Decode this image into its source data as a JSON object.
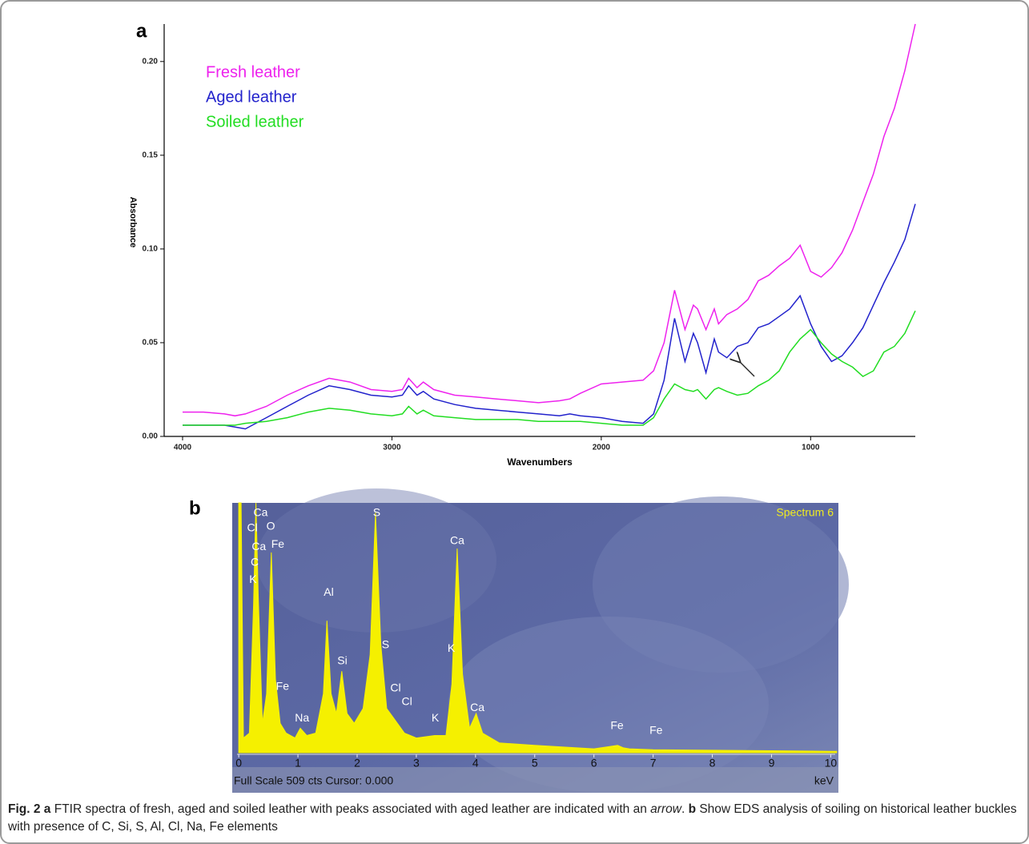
{
  "chart_data": [
    {
      "type": "line",
      "panel": "a",
      "xlabel": "Wavenumbers",
      "ylabel": "Absorbance",
      "xlim": [
        4088,
        500
      ],
      "ylim": [
        0,
        0.22
      ],
      "xticks": [
        4000,
        3000,
        2000,
        1000
      ],
      "yticks": [
        {
          "value": 0,
          "label": "0.00"
        },
        0.05,
        {
          "value": 0.1,
          "label": "0.10"
        },
        0.15,
        {
          "value": 0.2,
          "label": "0.20"
        }
      ],
      "legend": "upper left",
      "x": [
        4000,
        3900,
        3800,
        3750,
        3700,
        3600,
        3500,
        3400,
        3300,
        3200,
        3100,
        3000,
        2950,
        2920,
        2880,
        2850,
        2800,
        2700,
        2600,
        2500,
        2400,
        2300,
        2200,
        2150,
        2100,
        2000,
        1900,
        1800,
        1750,
        1700,
        1650,
        1600,
        1560,
        1540,
        1500,
        1460,
        1440,
        1400,
        1350,
        1300,
        1250,
        1200,
        1150,
        1100,
        1050,
        1000,
        950,
        900,
        850,
        800,
        750,
        700,
        650,
        600,
        550,
        500
      ],
      "series": [
        {
          "name": "Fresh leather",
          "color": "#ee22ee",
          "values": [
            0.013,
            0.013,
            0.012,
            0.011,
            0.012,
            0.016,
            0.022,
            0.027,
            0.031,
            0.029,
            0.025,
            0.024,
            0.025,
            0.031,
            0.026,
            0.029,
            0.025,
            0.022,
            0.021,
            0.02,
            0.019,
            0.018,
            0.019,
            0.02,
            0.023,
            0.028,
            0.029,
            0.03,
            0.035,
            0.05,
            0.078,
            0.057,
            0.07,
            0.068,
            0.057,
            0.068,
            0.06,
            0.065,
            0.068,
            0.073,
            0.083,
            0.086,
            0.091,
            0.095,
            0.102,
            0.088,
            0.085,
            0.09,
            0.098,
            0.11,
            0.125,
            0.14,
            0.16,
            0.175,
            0.195,
            0.22
          ]
        },
        {
          "name": "Aged leather",
          "color": "#2222cc",
          "values": [
            0.006,
            0.006,
            0.006,
            0.005,
            0.004,
            0.01,
            0.016,
            0.022,
            0.027,
            0.025,
            0.022,
            0.021,
            0.022,
            0.027,
            0.022,
            0.024,
            0.02,
            0.017,
            0.015,
            0.014,
            0.013,
            0.012,
            0.011,
            0.012,
            0.011,
            0.01,
            0.008,
            0.007,
            0.012,
            0.03,
            0.063,
            0.04,
            0.055,
            0.05,
            0.034,
            0.052,
            0.045,
            0.042,
            0.048,
            0.05,
            0.058,
            0.06,
            0.064,
            0.068,
            0.075,
            0.06,
            0.048,
            0.04,
            0.043,
            0.05,
            0.058,
            0.07,
            0.082,
            0.093,
            0.105,
            0.124
          ]
        },
        {
          "name": "Soiled leather",
          "color": "#22dd22",
          "values": [
            0.006,
            0.006,
            0.006,
            0.006,
            0.007,
            0.008,
            0.01,
            0.013,
            0.015,
            0.014,
            0.012,
            0.011,
            0.012,
            0.016,
            0.012,
            0.014,
            0.011,
            0.01,
            0.009,
            0.009,
            0.009,
            0.008,
            0.008,
            0.008,
            0.008,
            0.007,
            0.006,
            0.006,
            0.01,
            0.02,
            0.028,
            0.025,
            0.024,
            0.025,
            0.02,
            0.025,
            0.026,
            0.024,
            0.022,
            0.023,
            0.027,
            0.03,
            0.035,
            0.045,
            0.052,
            0.057,
            0.05,
            0.044,
            0.04,
            0.037,
            0.032,
            0.035,
            0.045,
            0.048,
            0.055,
            0.067
          ]
        }
      ]
    },
    {
      "type": "area",
      "panel": "b",
      "title": "Spectrum 6",
      "xlabel": "keV",
      "footer": "Full Scale 509 cts Cursor: 0.000",
      "color": "#f5f000",
      "xlim": [
        -0.11,
        10.13
      ],
      "ylim": [
        0,
        509
      ],
      "xticks": [
        0,
        1,
        2,
        3,
        4,
        5,
        6,
        7,
        8,
        9,
        10
      ],
      "x": [
        0,
        0.04,
        0.08,
        0.18,
        0.25,
        0.29,
        0.33,
        0.4,
        0.47,
        0.55,
        0.62,
        0.7,
        0.8,
        0.95,
        1.04,
        1.15,
        1.3,
        1.43,
        1.49,
        1.56,
        1.65,
        1.74,
        1.83,
        1.95,
        2.1,
        2.22,
        2.31,
        2.4,
        2.5,
        2.62,
        2.8,
        3,
        3.31,
        3.5,
        3.6,
        3.69,
        3.78,
        3.9,
        4.01,
        4.12,
        4.4,
        5,
        6,
        6.4,
        6.5,
        6.6,
        7,
        8,
        9,
        10,
        10.1
      ],
      "values": [
        509,
        509,
        30,
        40,
        300,
        509,
        320,
        60,
        120,
        408,
        150,
        60,
        40,
        30,
        50,
        35,
        40,
        120,
        269,
        120,
        80,
        166,
        80,
        60,
        90,
        200,
        489,
        220,
        90,
        70,
        40,
        30,
        35,
        35,
        140,
        416,
        160,
        50,
        80,
        40,
        20,
        15,
        8,
        15,
        10,
        8,
        6,
        5,
        4,
        3,
        3
      ],
      "peak_labels": [
        {
          "text": "Cl",
          "x": 0.23,
          "y": 457
        },
        {
          "text": "Ca",
          "x": 0.37,
          "y": 488
        },
        {
          "text": "O",
          "x": 0.54,
          "y": 460
        },
        {
          "text": "Ca",
          "x": 0.34,
          "y": 419
        },
        {
          "text": "Fe",
          "x": 0.66,
          "y": 424
        },
        {
          "text": "C",
          "x": 0.27,
          "y": 387
        },
        {
          "text": "K",
          "x": 0.24,
          "y": 352
        },
        {
          "text": "Al",
          "x": 1.52,
          "y": 326
        },
        {
          "text": "Si",
          "x": 1.75,
          "y": 186
        },
        {
          "text": "Fe",
          "x": 0.74,
          "y": 134
        },
        {
          "text": "Na",
          "x": 1.07,
          "y": 70
        },
        {
          "text": "S",
          "x": 2.33,
          "y": 488
        },
        {
          "text": "S",
          "x": 2.48,
          "y": 219
        },
        {
          "text": "Cl",
          "x": 2.65,
          "y": 131
        },
        {
          "text": "Cl",
          "x": 2.84,
          "y": 103
        },
        {
          "text": "K",
          "x": 3.32,
          "y": 70
        },
        {
          "text": "Ca",
          "x": 3.69,
          "y": 431
        },
        {
          "text": "K",
          "x": 3.59,
          "y": 212
        },
        {
          "text": "Ca",
          "x": 4.03,
          "y": 91
        },
        {
          "text": "Fe",
          "x": 6.39,
          "y": 54
        },
        {
          "text": "Fe",
          "x": 7.05,
          "y": 44
        }
      ]
    }
  ],
  "caption": [
    {
      "text": "Fig. 2",
      "bold": true
    },
    {
      "text": "a",
      "bold": true
    },
    {
      "text": "FTIR spectra of fresh, aged and soiled leather with peaks associated with aged leather are indicated with an"
    },
    {
      "text": "arrow",
      "italic": true
    },
    {
      "text": "."
    },
    {
      "text": "b",
      "bold": true
    },
    {
      "text": "Show EDS analysis of soiling on historical leather buckles with presence of C, Si, S, Al, Cl, Na, Fe elements"
    }
  ]
}
